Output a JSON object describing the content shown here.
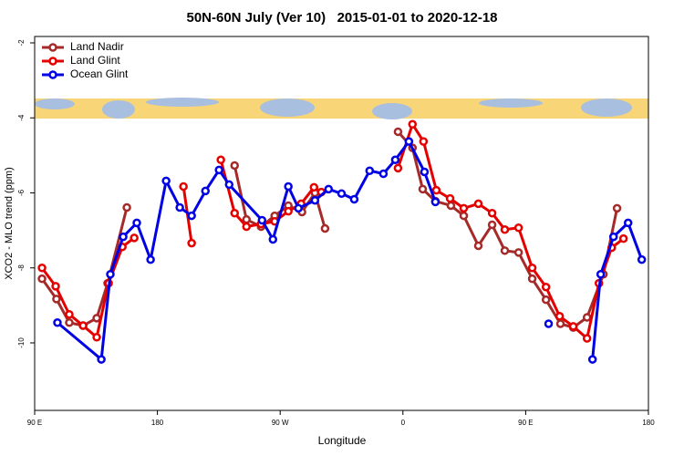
{
  "chart_data": {
    "type": "line",
    "title": "50N-60N July (Ver 10)   2015-01-01 to 2020-12-18",
    "x_label": "Longitude",
    "y_label": "XCO2 - MLO trend (ppm)",
    "xlim": [
      90,
      540
    ],
    "ylim": [
      -11.8,
      -1.83
    ],
    "xticks": [
      {
        "value": 90,
        "label": "90 E"
      },
      {
        "value": 180,
        "label": "180"
      },
      {
        "value": 270,
        "label": "90 W"
      },
      {
        "value": 360,
        "label": "0"
      },
      {
        "value": 450,
        "label": "90 E"
      },
      {
        "value": 540,
        "label": "180"
      }
    ],
    "yticks": [
      -2,
      -4,
      -6,
      -8,
      -10
    ],
    "legend": "top-left",
    "series": [
      {
        "name": "Land Nadir",
        "color": "#a52a2a",
        "x": [
          95.4,
          106,
          115.4,
          125.5,
          135.5,
          143.5,
          157.6,
          null,
          236.6,
          245.3,
          256,
          266,
          276,
          286,
          295.5,
          302.9,
          null,
          356.4,
          367,
          374.5,
          383.8,
          395.2,
          404.6,
          415.3,
          425.4,
          434.7,
          444.8,
          454.8,
          464.9,
          475.5,
          484.9,
          495,
          507,
          517
        ],
        "values": [
          -8.29,
          -8.83,
          -9.46,
          -9.54,
          -9.34,
          -8.41,
          -6.39,
          null,
          -5.27,
          -6.71,
          -6.9,
          -6.61,
          -6.34,
          -6.51,
          -6.0,
          -6.95,
          null,
          -4.37,
          -4.8,
          -5.9,
          -6.22,
          -6.34,
          -6.61,
          -7.41,
          -6.85,
          -7.54,
          -7.59,
          -8.29,
          -8.85,
          -9.49,
          -9.59,
          -9.32,
          -8.17,
          -6.41
        ]
      },
      {
        "name": "Land Glint",
        "color": "#e50000",
        "x": [
          95.4,
          105.4,
          115.4,
          125.5,
          135.5,
          144.2,
          154.3,
          163,
          null,
          199.1,
          205.1,
          null,
          226.5,
          236.6,
          245.3,
          256,
          266,
          276,
          285.4,
          294.8,
          300.2,
          null,
          356.4,
          367,
          375.1,
          384.5,
          394.6,
          404.6,
          415.3,
          425.4,
          434.7,
          444.8,
          454.8,
          464.9,
          474.9,
          484.9,
          495,
          503.7,
          513.1,
          521.7
        ],
        "values": [
          -8.0,
          -8.49,
          -9.24,
          -9.54,
          -9.85,
          -8.41,
          -7.44,
          -7.2,
          null,
          -5.83,
          -7.34,
          null,
          -5.12,
          -6.54,
          -6.9,
          -6.83,
          -6.76,
          -6.49,
          -6.29,
          -5.85,
          -5.98,
          null,
          -5.34,
          -4.17,
          -4.63,
          -5.93,
          -6.15,
          -6.41,
          -6.29,
          -6.54,
          -6.98,
          -6.93,
          -8.0,
          -8.51,
          -9.29,
          -9.56,
          -9.88,
          -8.41,
          -7.46,
          -7.22
        ]
      },
      {
        "name": "Ocean Glint",
        "color": "#0000e5",
        "x": [
          106.7,
          138.9,
          145.5,
          154.9,
          164.9,
          175,
          186.4,
          196.4,
          205.1,
          215.2,
          225.2,
          232.6,
          256.7,
          264.7,
          276,
          283.4,
          295.5,
          305.5,
          315,
          324.3,
          335.6,
          345.7,
          354.4,
          364.4,
          375.8,
          383.8,
          null,
          466.8,
          null,
          499,
          505,
          514.4,
          525.1,
          535.1
        ],
        "values": [
          -9.46,
          -10.44,
          -8.17,
          -7.17,
          -6.8,
          -7.78,
          -5.68,
          -6.39,
          -6.61,
          -5.95,
          -5.39,
          -5.78,
          -6.73,
          -7.24,
          -5.83,
          -6.41,
          -6.2,
          -5.9,
          -6.02,
          -6.17,
          -5.41,
          -5.49,
          -5.12,
          -4.63,
          -5.44,
          -6.24,
          null,
          -9.49,
          null,
          -10.44,
          -8.17,
          -7.17,
          -6.8,
          -7.78
        ]
      }
    ]
  }
}
